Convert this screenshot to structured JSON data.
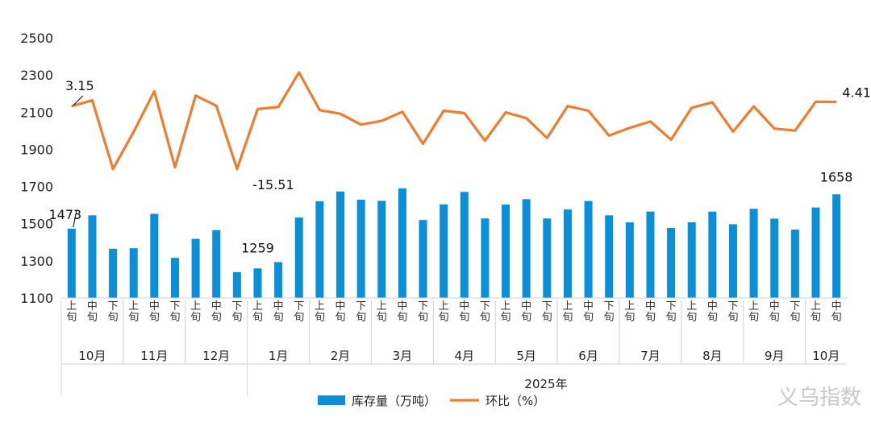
{
  "chart_data": {
    "type": "bar+line",
    "y_axis": {
      "ticks": [
        1100,
        1300,
        1500,
        1700,
        1900,
        2100,
        2300,
        2500
      ],
      "range": [
        1100,
        2500
      ]
    },
    "x_ticks": [
      "上旬",
      "中旬",
      "下旬",
      "上旬",
      "中旬",
      "下旬",
      "上旬",
      "中旬",
      "下旬",
      "上旬",
      "中旬",
      "下旬",
      "上旬",
      "中旬",
      "下旬",
      "上旬",
      "中旬",
      "下旬",
      "上旬",
      "中旬",
      "下旬",
      "上旬",
      "中旬",
      "下旬",
      "上旬",
      "中旬",
      "下旬",
      "上旬",
      "中旬",
      "下旬",
      "上旬",
      "中旬",
      "下旬",
      "上旬",
      "中旬",
      "下旬",
      "上旬",
      "中旬"
    ],
    "months": [
      {
        "label": "10月",
        "count": 3
      },
      {
        "label": "11月",
        "count": 3
      },
      {
        "label": "12月",
        "count": 3
      },
      {
        "label": "1月",
        "count": 3
      },
      {
        "label": "2月",
        "count": 3
      },
      {
        "label": "3月",
        "count": 3
      },
      {
        "label": "4月",
        "count": 3
      },
      {
        "label": "5月",
        "count": 3
      },
      {
        "label": "6月",
        "count": 3
      },
      {
        "label": "7月",
        "count": 3
      },
      {
        "label": "8月",
        "count": 3
      },
      {
        "label": "9月",
        "count": 3
      },
      {
        "label": "10月",
        "count": 2
      }
    ],
    "year_label": "2025年",
    "series": [
      {
        "name": "库存量（万吨）",
        "type": "bar",
        "color": "#0a8fd8",
        "values": [
          1473,
          1545,
          1365,
          1368,
          1553,
          1316,
          1418,
          1465,
          1239,
          1259,
          1293,
          1533,
          1621,
          1673,
          1629,
          1623,
          1690,
          1520,
          1604,
          1671,
          1528,
          1603,
          1632,
          1528,
          1576,
          1622,
          1545,
          1507,
          1565,
          1477,
          1507,
          1565,
          1497,
          1580,
          1527,
          1468,
          1587,
          1658
        ]
      },
      {
        "name": "环比（%）",
        "type": "line",
        "color": "#ef7d2d",
        "values": [
          3.15,
          4.9,
          -15.51,
          -4.5,
          7.6,
          -15.0,
          6.3,
          3.3,
          -15.51,
          2.3,
          2.9,
          13.2,
          2.0,
          0.9,
          -2.3,
          -1.2,
          1.5,
          -8.0,
          1.8,
          1.1,
          -7.1,
          1.3,
          -0.4,
          -6.3,
          3.2,
          1.8,
          -5.6,
          -3.3,
          -1.4,
          -6.8,
          2.7,
          4.3,
          -4.4,
          3.1,
          -3.5,
          -4.1,
          4.5,
          4.41
        ]
      }
    ],
    "annotations": [
      {
        "text": "1473",
        "series": "库存量（万吨）",
        "index": 0
      },
      {
        "text": "1259",
        "series": "库存量（万吨）",
        "index": 9
      },
      {
        "text": "1658",
        "series": "库存量（万吨）",
        "index": 37
      },
      {
        "text": "3.15",
        "series": "环比（%）",
        "index": 0
      },
      {
        "text": "-15.51",
        "series": "环比（%）",
        "index": 8
      },
      {
        "text": "4.41",
        "series": "环比（%）",
        "index": 37
      }
    ],
    "legend_position": "bottom",
    "grid": false
  },
  "watermark": "义乌指数"
}
